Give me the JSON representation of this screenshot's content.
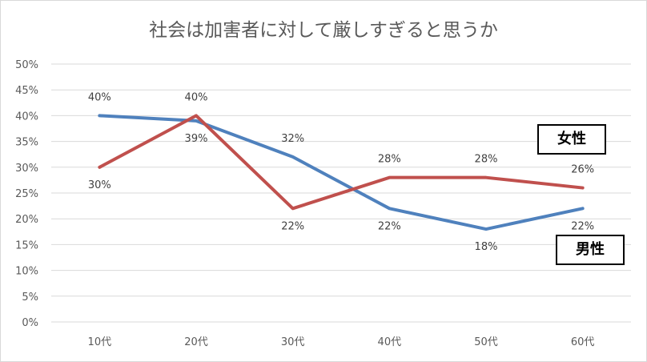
{
  "chart_data": {
    "type": "line",
    "title": "社会は加害者に対して厳しすぎると思うか",
    "categories": [
      "10代",
      "20代",
      "30代",
      "40代",
      "50代",
      "60代"
    ],
    "y_ticks": [
      "0%",
      "5%",
      "10%",
      "15%",
      "20%",
      "25%",
      "30%",
      "35%",
      "40%",
      "45%",
      "50%"
    ],
    "ylim": [
      0,
      50
    ],
    "grid": true,
    "series": [
      {
        "name": "男性",
        "color": "#4f81bd",
        "values": [
          40,
          39,
          32,
          22,
          18,
          22
        ],
        "labels": [
          "40%",
          "39%",
          "32%",
          "22%",
          "18%",
          "22%"
        ]
      },
      {
        "name": "女性",
        "color": "#c0504d",
        "values": [
          30,
          40,
          22,
          28,
          28,
          26
        ],
        "labels": [
          "30%",
          "40%",
          "22%",
          "28%",
          "28%",
          "26%"
        ]
      }
    ]
  }
}
